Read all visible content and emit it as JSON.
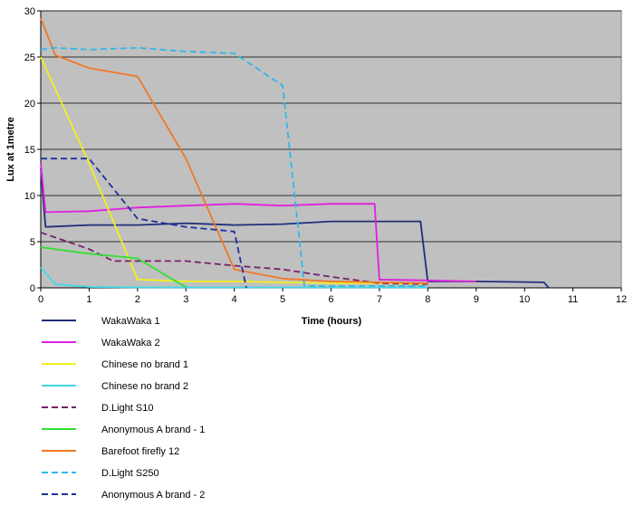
{
  "chart_data": {
    "type": "line",
    "title": "",
    "xlabel": "Time (hours)",
    "ylabel": "Lux at 1metre",
    "xlim": [
      0,
      12
    ],
    "ylim": [
      0,
      30
    ],
    "x_ticks": [
      "0",
      "1",
      "2",
      "3",
      "4",
      "5",
      "6",
      "7",
      "8",
      "9",
      "10",
      "11",
      "12"
    ],
    "y_ticks": [
      "0",
      "5",
      "10",
      "15",
      "20",
      "25",
      "30"
    ],
    "grid": "horizontal",
    "plot_background": "#c0c0c0",
    "legend_position": "bottom-left",
    "series": [
      {
        "name": "WakaWaka 1",
        "color": "#1f2f7a",
        "dash": "solid",
        "points": [
          [
            0,
            13
          ],
          [
            0.1,
            6.6
          ],
          [
            1,
            6.8
          ],
          [
            2,
            6.8
          ],
          [
            3,
            7.0
          ],
          [
            4,
            6.8
          ],
          [
            5,
            6.9
          ],
          [
            6,
            7.2
          ],
          [
            7,
            7.2
          ],
          [
            7.85,
            7.2
          ],
          [
            8,
            0.7
          ],
          [
            9,
            0.7
          ],
          [
            10.4,
            0.6
          ],
          [
            10.5,
            0
          ]
        ]
      },
      {
        "name": "WakaWaka 2",
        "color": "#e020e0",
        "dash": "solid",
        "points": [
          [
            0,
            13.5
          ],
          [
            0.1,
            8.2
          ],
          [
            1,
            8.3
          ],
          [
            2,
            8.7
          ],
          [
            3,
            8.9
          ],
          [
            4,
            9.1
          ],
          [
            5,
            8.9
          ],
          [
            6,
            9.1
          ],
          [
            6.9,
            9.1
          ],
          [
            7,
            0.9
          ],
          [
            8,
            0.8
          ],
          [
            9,
            0.7
          ]
        ]
      },
      {
        "name": "Chinese no brand 1",
        "color": "#f0f020",
        "dash": "solid",
        "points": [
          [
            0,
            25
          ],
          [
            1,
            13.5
          ],
          [
            2,
            0.9
          ],
          [
            3,
            0.7
          ],
          [
            4,
            0.7
          ],
          [
            5,
            0.6
          ],
          [
            6,
            0.5
          ],
          [
            7,
            0.5
          ],
          [
            8,
            0.4
          ]
        ]
      },
      {
        "name": "Chinese no brand 2",
        "color": "#40d8e8",
        "dash": "solid",
        "points": [
          [
            0,
            2.2
          ],
          [
            0.3,
            0.4
          ],
          [
            1,
            0.1
          ],
          [
            2,
            0.05
          ],
          [
            3,
            0.05
          ],
          [
            4,
            0.05
          ],
          [
            5,
            0.05
          ],
          [
            6,
            0.05
          ],
          [
            7,
            0.05
          ],
          [
            8,
            0.05
          ]
        ]
      },
      {
        "name": "D.Light S10",
        "color": "#7a1f6a",
        "dash": "dashed",
        "points": [
          [
            0,
            6
          ],
          [
            1,
            4.2
          ],
          [
            1.5,
            2.9
          ],
          [
            2,
            2.9
          ],
          [
            3,
            2.9
          ],
          [
            4,
            2.4
          ],
          [
            5,
            2.0
          ],
          [
            6,
            1.2
          ],
          [
            7,
            0.5
          ],
          [
            8,
            0.4
          ]
        ]
      },
      {
        "name": "Anonymous A brand - 1",
        "color": "#30e030",
        "dash": "solid",
        "points": [
          [
            0,
            4.4
          ],
          [
            1,
            3.7
          ],
          [
            2,
            3.2
          ],
          [
            2.7,
            1.0
          ],
          [
            3,
            0.1
          ]
        ]
      },
      {
        "name": "Barefoot firefly 12",
        "color": "#f07828",
        "dash": "solid",
        "points": [
          [
            0,
            29.2
          ],
          [
            0.3,
            25.2
          ],
          [
            1,
            23.8
          ],
          [
            2,
            22.9
          ],
          [
            3,
            14
          ],
          [
            4,
            2.0
          ],
          [
            5,
            1.0
          ],
          [
            6,
            0.7
          ],
          [
            7,
            0.6
          ],
          [
            8,
            0.5
          ]
        ]
      },
      {
        "name": "D.Light S250",
        "color": "#30b8e8",
        "dash": "dashed",
        "points": [
          [
            0,
            25.8
          ],
          [
            0.3,
            26.0
          ],
          [
            1,
            25.8
          ],
          [
            2,
            26.0
          ],
          [
            3,
            25.6
          ],
          [
            4,
            25.4
          ],
          [
            5,
            21.9
          ],
          [
            5.45,
            0.2
          ],
          [
            6,
            0.2
          ],
          [
            7,
            0.2
          ],
          [
            8,
            0.2
          ]
        ]
      },
      {
        "name": "Anonymous A brand - 2",
        "color": "#2030a0",
        "dash": "dashed",
        "points": [
          [
            0,
            14
          ],
          [
            1,
            14
          ],
          [
            2,
            7.5
          ],
          [
            3,
            6.6
          ],
          [
            4,
            6.1
          ],
          [
            4.25,
            0
          ]
        ]
      }
    ]
  }
}
